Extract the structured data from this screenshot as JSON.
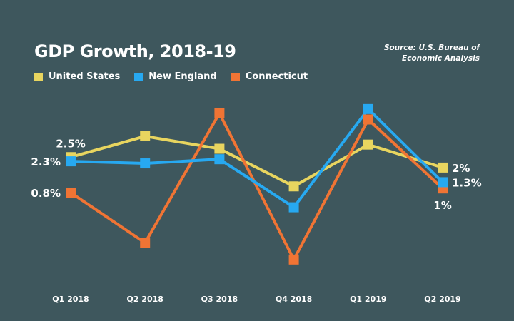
{
  "chart_data": {
    "type": "line",
    "title": "GDP Growth, 2018-19",
    "source": [
      "Source: U.S. Bureau of",
      "Economic Analysis"
    ],
    "xlabel": "",
    "ylabel": "",
    "categories": [
      "Q1 2018",
      "Q2 2018",
      "Q3 2018",
      "Q4 2018",
      "Q1 2019",
      "Q2 2019"
    ],
    "ylim": [
      -3,
      5.5
    ],
    "grid": false,
    "legend_position": "top-left",
    "series": [
      {
        "name": "United States",
        "color": "#e8d55f",
        "values": [
          2.5,
          3.5,
          2.9,
          1.1,
          3.1,
          2.0
        ]
      },
      {
        "name": "New England",
        "color": "#27a9f1",
        "values": [
          2.3,
          2.2,
          2.4,
          0.1,
          4.8,
          1.3
        ]
      },
      {
        "name": "Connecticut",
        "color": "#f07434",
        "values": [
          0.8,
          -1.6,
          4.6,
          -2.4,
          4.3,
          1.0
        ]
      }
    ],
    "annotations": [
      {
        "series": "United States",
        "category": "Q1 2018",
        "text": "2.5%"
      },
      {
        "series": "New England",
        "category": "Q1 2018",
        "text": "2.3%"
      },
      {
        "series": "Connecticut",
        "category": "Q1 2018",
        "text": "0.8%"
      },
      {
        "series": "United States",
        "category": "Q2 2019",
        "text": "2%"
      },
      {
        "series": "New England",
        "category": "Q2 2019",
        "text": "1.3%"
      },
      {
        "series": "Connecticut",
        "category": "Q2 2019",
        "text": "1%"
      }
    ]
  }
}
